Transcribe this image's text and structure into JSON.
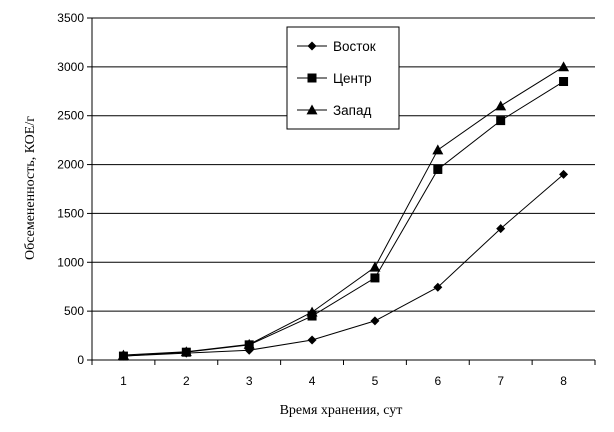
{
  "chart_data": {
    "type": "line",
    "title": "",
    "xlabel": "Время хранения, сут",
    "ylabel": "Обсемененность, КОЕ/г",
    "x": [
      1,
      2,
      3,
      4,
      5,
      6,
      7,
      8
    ],
    "ylim": [
      0,
      3500
    ],
    "yticks": [
      0,
      500,
      1000,
      1500,
      2000,
      2500,
      3000,
      3500
    ],
    "grid": true,
    "legend_position": "top-center",
    "series": [
      {
        "name": "Восток",
        "marker": "diamond",
        "values": [
          40,
          70,
          100,
          205,
          400,
          745,
          1345,
          1900
        ]
      },
      {
        "name": "Центр",
        "marker": "square",
        "values": [
          40,
          80,
          155,
          450,
          840,
          1950,
          2450,
          2850
        ]
      },
      {
        "name": "Запад",
        "marker": "triangle",
        "values": [
          50,
          85,
          160,
          490,
          950,
          2150,
          2600,
          3000
        ]
      }
    ]
  }
}
